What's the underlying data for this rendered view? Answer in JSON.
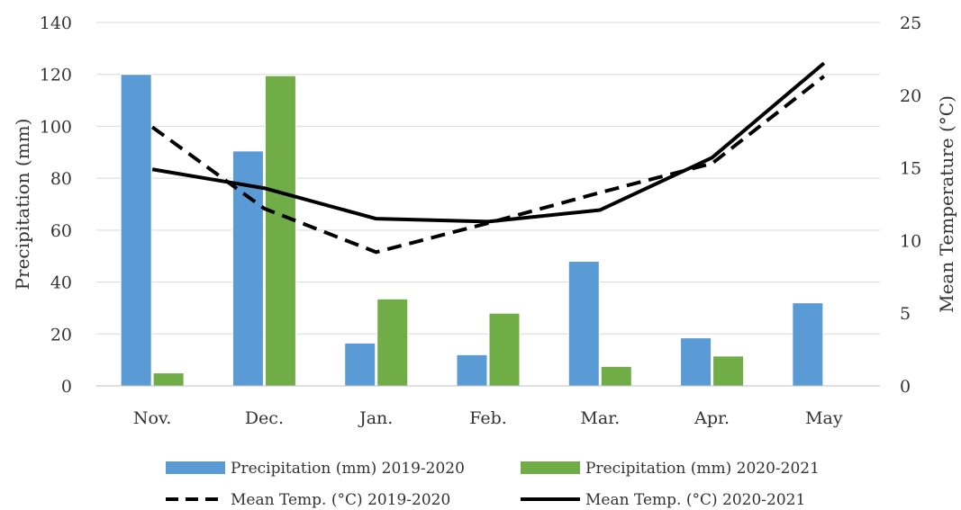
{
  "chart_data": {
    "type": "bar",
    "categories": [
      "Nov.",
      "Dec.",
      "Jan.",
      "Feb.",
      "Mar.",
      "Apr.",
      "May"
    ],
    "ylabel": "Precipitation (mm)",
    "y2label": "Mean Temperature (°C)",
    "ylim": [
      0,
      140
    ],
    "y2lim": [
      0,
      25
    ],
    "yticks": [
      0,
      20,
      40,
      60,
      80,
      100,
      120,
      140
    ],
    "y2ticks": [
      0,
      5,
      10,
      15,
      20,
      25
    ],
    "grid": true,
    "legend_position": "bottom",
    "bar_series": [
      {
        "name": "Precipitation (mm) 2019-2020",
        "color": "#5b9bd5",
        "values": [
          120,
          90.5,
          16.5,
          12,
          48,
          18.5,
          32
        ]
      },
      {
        "name": "Precipitation (mm) 2020-2021",
        "color": "#70ad47",
        "values": [
          5,
          119.5,
          33.5,
          28,
          7.5,
          11.5,
          null
        ]
      }
    ],
    "line_series": [
      {
        "name": "Mean Temp. (°C) 2019-2020",
        "axis": "right",
        "style": "dashed",
        "color": "#000000",
        "values": [
          17.8,
          12.2,
          9.2,
          11.2,
          13.3,
          15.3,
          21.3
        ]
      },
      {
        "name": "Mean Temp. (°C) 2020-2021",
        "axis": "right",
        "style": "solid",
        "color": "#000000",
        "values": [
          14.9,
          13.6,
          11.5,
          11.3,
          12.1,
          15.7,
          22.2
        ]
      }
    ]
  }
}
